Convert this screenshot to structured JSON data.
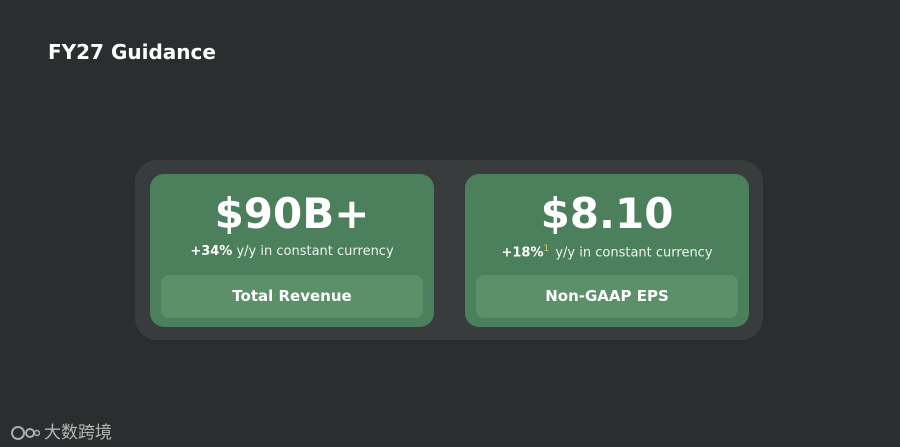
{
  "header": {
    "title": "FY27 Guidance"
  },
  "cards": [
    {
      "value": "$90B+",
      "growth": "+34%",
      "growth_text": "y/y in constant currency",
      "label": "Total Revenue"
    },
    {
      "value": "$8.10",
      "growth": "+18%",
      "footnote": "1",
      "growth_text": "y/y in constant currency",
      "label": "Non-GAAP EPS"
    }
  ],
  "watermark": "大数跨境"
}
